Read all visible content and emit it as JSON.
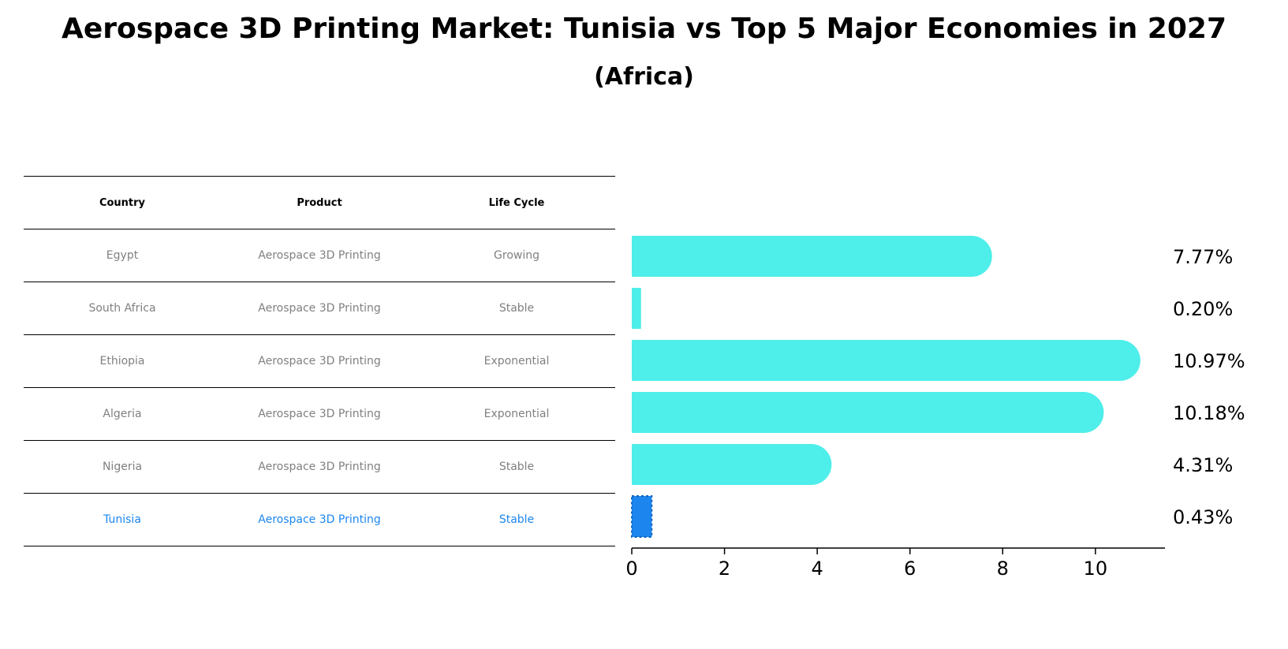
{
  "title": "Aerospace 3D Printing Market: Tunisia vs Top 5 Major Economies in 2027",
  "subtitle": "(Africa)",
  "colors": {
    "bar": "#4eeeea",
    "highlight": "#1c86ee",
    "muted_text": "#808080"
  },
  "table": {
    "headers": [
      "Country",
      "Product",
      "Life Cycle"
    ],
    "rows": [
      [
        "Egypt",
        "Aerospace 3D Printing",
        "Growing"
      ],
      [
        "South Africa",
        "Aerospace 3D Printing",
        "Stable"
      ],
      [
        "Ethiopia",
        "Aerospace 3D Printing",
        "Exponential"
      ],
      [
        "Algeria",
        "Aerospace 3D Printing",
        "Exponential"
      ],
      [
        "Nigeria",
        "Aerospace 3D Printing",
        "Stable"
      ],
      [
        "Tunisia",
        "Aerospace 3D Printing",
        "Stable"
      ]
    ]
  },
  "chart_data": {
    "type": "bar",
    "orientation": "horizontal",
    "categories": [
      "Egypt",
      "South Africa",
      "Ethiopia",
      "Algeria",
      "Nigeria",
      "Tunisia"
    ],
    "values": [
      7.77,
      0.2,
      10.97,
      10.18,
      4.31,
      0.43
    ],
    "value_labels": [
      "7.77%",
      "0.20%",
      "10.97%",
      "10.18%",
      "4.31%",
      "0.43%"
    ],
    "highlight_category": "Tunisia",
    "xlim": [
      0,
      11.5
    ],
    "xticks": [
      0,
      2,
      4,
      6,
      8,
      10
    ],
    "grid": false
  }
}
